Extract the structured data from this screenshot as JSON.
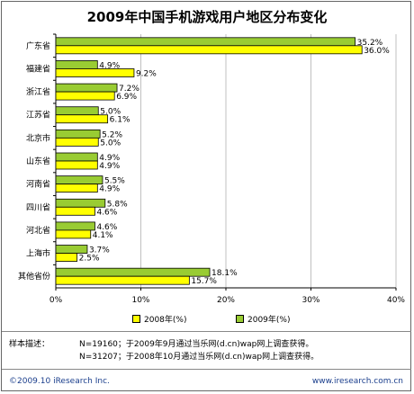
{
  "colors": {
    "y2008": "#FFFF00",
    "y2009": "#99CC33",
    "grid": "#C0C0C0",
    "footer": "#1A3E8C"
  },
  "chart_data": {
    "type": "bar",
    "orientation": "horizontal",
    "title": "2009年中国手机游戏用户地区分布变化",
    "categories": [
      "广东省",
      "福建省",
      "浙江省",
      "江苏省",
      "北京市",
      "山东省",
      "河南省",
      "四川省",
      "河北省",
      "上海市",
      "其他省份"
    ],
    "series": [
      {
        "name": "2008年(%)",
        "values": [
          36.0,
          9.2,
          6.9,
          6.1,
          5.0,
          4.9,
          4.9,
          4.6,
          4.1,
          2.5,
          15.7
        ]
      },
      {
        "name": "2009年(%)",
        "values": [
          35.2,
          4.9,
          7.2,
          5.0,
          5.2,
          4.9,
          5.5,
          5.8,
          4.6,
          3.7,
          18.1
        ]
      }
    ],
    "value_labels": [
      [
        "36.0%",
        "9.2%",
        "6.9%",
        "6.1%",
        "5.0%",
        "4.9%",
        "4.9%",
        "4.6%",
        "4.1%",
        "2.5%",
        "15.7%"
      ],
      [
        "35.2%",
        "4.9%",
        "7.2%",
        "5.0%",
        "5.2%",
        "4.9%",
        "5.5%",
        "5.8%",
        "4.6%",
        "3.7%",
        "18.1%"
      ]
    ],
    "xlim": [
      0,
      40
    ],
    "xticks": [
      "0%",
      "10%",
      "20%",
      "30%",
      "40%"
    ],
    "grid": "vertical",
    "legend_position": "bottom"
  },
  "notes": {
    "label": "样本描述：",
    "line1": "N=19160；于2009年9月通过当乐网(d.cn)wap网上调查获得。",
    "line2": "N=31207；于2008年10月通过当乐网(d.cn)wap网上调查获得。"
  },
  "footer": {
    "copyright": "©2009.10 iResearch Inc.",
    "site": "www.iresearch.com.cn"
  }
}
